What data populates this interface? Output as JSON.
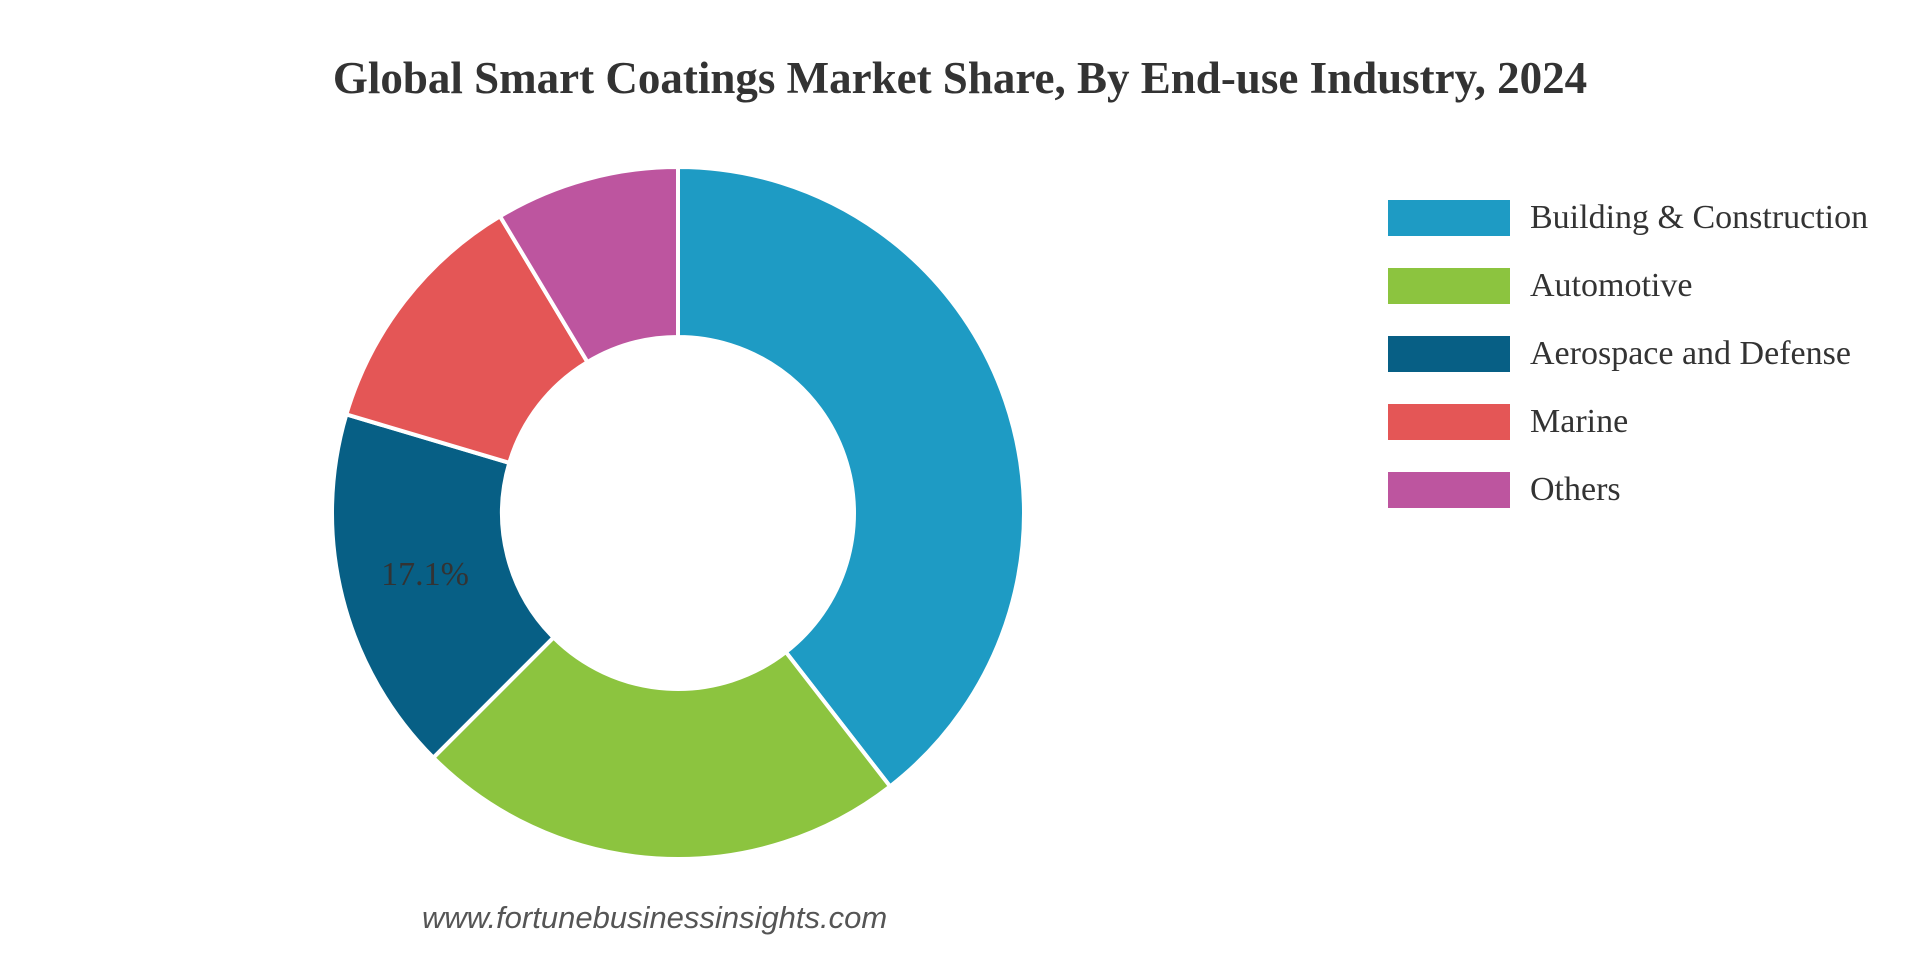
{
  "chart_data": {
    "type": "pie",
    "title": "Global Smart Coatings Market Share, By End-use Industry, 2024",
    "donut": true,
    "legend_position": "right",
    "slices": [
      {
        "label": "Building & Construction",
        "value": 39.5,
        "color": "#1e9bc4",
        "label_text": ""
      },
      {
        "label": "Automotive",
        "value": 23.0,
        "color": "#8cc43f",
        "label_text": ""
      },
      {
        "label": "Aerospace and Defense",
        "value": 17.1,
        "color": "#075f85",
        "label_text": "17.1%"
      },
      {
        "label": "Marine",
        "value": 11.8,
        "color": "#e45656",
        "label_text": ""
      },
      {
        "label": "Others",
        "value": 8.6,
        "color": "#bd559f",
        "label_text": ""
      }
    ]
  },
  "source": {
    "url": "www.fortunebusinessinsights.com"
  }
}
